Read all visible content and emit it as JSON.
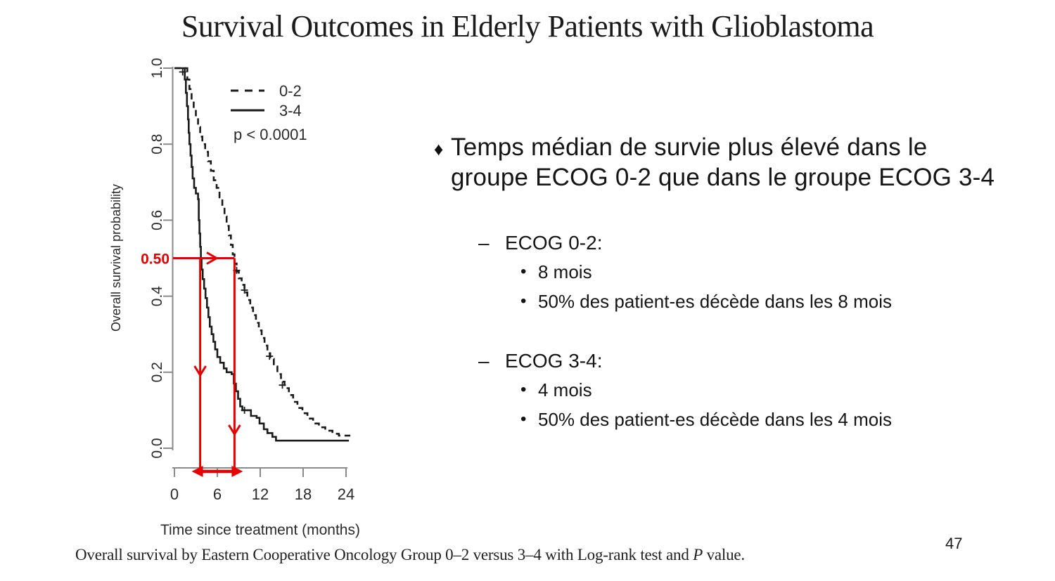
{
  "slide": {
    "title": "Survival Outcomes in Elderly Patients with Glioblastoma",
    "page_number": "47",
    "caption": {
      "before": "Overall survival by Eastern Cooperative Oncology Group 0–2 versus 3–4 with Log-rank test and ",
      "p": "P",
      "after": " value."
    }
  },
  "bullets": {
    "main_marker": "♦",
    "main_lines": [
      "Temps médian de survie plus élevé dans le",
      "groupe ECOG 0-2 que dans le groupe ECOG 3-4"
    ],
    "item_marker": "•",
    "groups": [
      {
        "marker": "–",
        "label": "ECOG 0-2:",
        "items": [
          "8 mois",
          "50% des patient-es décède dans les 8 mois"
        ]
      },
      {
        "marker": "–",
        "label": "ECOG 3-4:",
        "items": [
          "4 mois",
          "50% des patient-es décède dans les 4 mois"
        ]
      }
    ]
  },
  "chart_data": {
    "type": "line",
    "subtype": "kaplan_meier_step",
    "title": "",
    "xlabel": "Time since treatment (months)",
    "ylabel": "Overall survival probability",
    "xlim": [
      0,
      24.6
    ],
    "ylim": [
      0,
      1
    ],
    "xticks": [
      0,
      6,
      12,
      18,
      24
    ],
    "yticks": [
      "0.0",
      "0.2",
      "0.4",
      "0.6",
      "0.8",
      "1.0"
    ],
    "grid": false,
    "legend_position": "upper-right-inside",
    "p_value_label": "p < 0.0001",
    "legend": [
      {
        "name": "0-2",
        "style": "dashed"
      },
      {
        "name": "3-4",
        "style": "solid"
      }
    ],
    "series": [
      {
        "name": "0-2",
        "style": "dashed",
        "points": [
          [
            0,
            1
          ],
          [
            1.6,
            1
          ],
          [
            1.8,
            0.97
          ],
          [
            2.1,
            0.945
          ],
          [
            2.4,
            0.92
          ],
          [
            2.7,
            0.895
          ],
          [
            3.0,
            0.87
          ],
          [
            3.3,
            0.845
          ],
          [
            3.6,
            0.82
          ],
          [
            3.9,
            0.8
          ],
          [
            4.3,
            0.78
          ],
          [
            4.7,
            0.755
          ],
          [
            5.1,
            0.73
          ],
          [
            5.5,
            0.705
          ],
          [
            5.9,
            0.685
          ],
          [
            6.3,
            0.66
          ],
          [
            6.7,
            0.635
          ],
          [
            7.0,
            0.61
          ],
          [
            7.3,
            0.585
          ],
          [
            7.6,
            0.56
          ],
          [
            7.9,
            0.535
          ],
          [
            8.15,
            0.51
          ],
          [
            8.4,
            0.486
          ],
          [
            8.7,
            0.465
          ],
          [
            9.0,
            0.447
          ],
          [
            9.4,
            0.43
          ],
          [
            9.8,
            0.41
          ],
          [
            10.2,
            0.39
          ],
          [
            10.6,
            0.37
          ],
          [
            11.0,
            0.35
          ],
          [
            11.4,
            0.33
          ],
          [
            11.8,
            0.31
          ],
          [
            12.2,
            0.29
          ],
          [
            12.6,
            0.27
          ],
          [
            13.0,
            0.25
          ],
          [
            13.4,
            0.235
          ],
          [
            13.9,
            0.215
          ],
          [
            14.4,
            0.195
          ],
          [
            14.9,
            0.175
          ],
          [
            15.4,
            0.158
          ],
          [
            16.0,
            0.14
          ],
          [
            16.6,
            0.122
          ],
          [
            17.2,
            0.106
          ],
          [
            17.9,
            0.092
          ],
          [
            18.6,
            0.078
          ],
          [
            19.4,
            0.065
          ],
          [
            20.2,
            0.055
          ],
          [
            21.1,
            0.046
          ],
          [
            22.1,
            0.038
          ],
          [
            23.0,
            0.033
          ],
          [
            24.6,
            0.033
          ]
        ],
        "censor_marks": [
          [
            8.7,
            0.468
          ],
          [
            9.8,
            0.416
          ],
          [
            13.3,
            0.242
          ],
          [
            15.1,
            0.166
          ]
        ]
      },
      {
        "name": "3-4",
        "style": "solid",
        "points": [
          [
            0,
            1
          ],
          [
            1.3,
            1
          ],
          [
            1.45,
            0.97
          ],
          [
            1.6,
            0.935
          ],
          [
            1.75,
            0.9
          ],
          [
            1.9,
            0.865
          ],
          [
            2.0,
            0.83
          ],
          [
            2.1,
            0.8
          ],
          [
            2.25,
            0.77
          ],
          [
            2.4,
            0.74
          ],
          [
            2.55,
            0.71
          ],
          [
            2.75,
            0.685
          ],
          [
            3.0,
            0.67
          ],
          [
            3.3,
            0.655
          ],
          [
            3.4,
            0.6
          ],
          [
            3.5,
            0.565
          ],
          [
            3.6,
            0.53
          ],
          [
            3.7,
            0.5
          ],
          [
            3.8,
            0.47
          ],
          [
            3.95,
            0.445
          ],
          [
            4.15,
            0.42
          ],
          [
            4.35,
            0.395
          ],
          [
            4.55,
            0.37
          ],
          [
            4.75,
            0.345
          ],
          [
            4.95,
            0.32
          ],
          [
            5.2,
            0.3
          ],
          [
            5.45,
            0.28
          ],
          [
            5.7,
            0.26
          ],
          [
            6.0,
            0.24
          ],
          [
            6.4,
            0.225
          ],
          [
            6.9,
            0.21
          ],
          [
            7.3,
            0.2
          ],
          [
            8.0,
            0.195
          ],
          [
            8.3,
            0.17
          ],
          [
            8.6,
            0.15
          ],
          [
            8.9,
            0.13
          ],
          [
            9.2,
            0.11
          ],
          [
            9.5,
            0.1
          ],
          [
            10.4,
            0.1
          ],
          [
            10.7,
            0.085
          ],
          [
            11.5,
            0.08
          ],
          [
            11.9,
            0.065
          ],
          [
            12.5,
            0.05
          ],
          [
            13.0,
            0.04
          ],
          [
            13.7,
            0.03
          ],
          [
            14.2,
            0.02
          ],
          [
            24.4,
            0.02
          ]
        ],
        "censor_marks": [
          [
            1.15,
            0.99
          ],
          [
            9.8,
            0.1
          ]
        ]
      }
    ],
    "annotations": {
      "median_label": "0.50",
      "level": 0.5,
      "arrows_at_months": [
        3.6,
        8.4
      ],
      "median_times_months": {
        "ecog_0_2": 8,
        "ecog_3_4": 4
      },
      "color": "#e80000"
    }
  }
}
